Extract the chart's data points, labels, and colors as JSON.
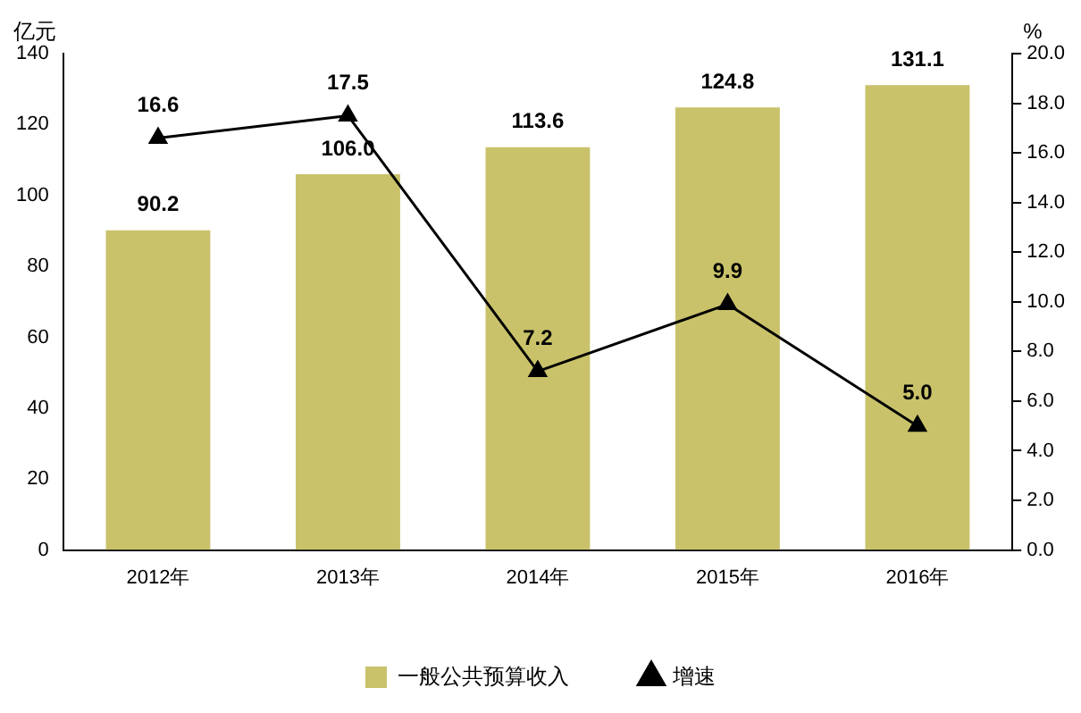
{
  "chart_data": {
    "type": "bar",
    "ylabel": "亿元",
    "y2label": "%",
    "categories": [
      "2012年",
      "2013年",
      "2014年",
      "2015年",
      "2016年"
    ],
    "series": [
      {
        "name": "一般公共预算收入",
        "color": "#c9c26a",
        "values": [
          90.2,
          106.0,
          113.6,
          124.8,
          131.1
        ],
        "value_labels": [
          "90.2",
          "106.0",
          "113.6",
          "124.8",
          "131.1"
        ]
      },
      {
        "name": "增速",
        "type": "line",
        "axis": "y2",
        "color": "#000000",
        "values": [
          16.6,
          17.5,
          7.2,
          9.9,
          5.0
        ],
        "value_labels": [
          "16.6",
          "17.5",
          "7.2",
          "9.9",
          "5.0"
        ]
      }
    ],
    "ylim": [
      0,
      140
    ],
    "yticks": [
      0,
      20,
      40,
      60,
      80,
      100,
      120,
      140
    ],
    "y2lim": [
      0,
      20
    ],
    "y2ticks": [
      {
        "value": 0,
        "label": "0.0"
      },
      {
        "value": 2,
        "label": "2.0"
      },
      {
        "value": 4,
        "label": "4.0"
      },
      {
        "value": 6,
        "label": "6.0"
      },
      {
        "value": 8,
        "label": "8.0"
      },
      {
        "value": 10,
        "label": "10.0"
      },
      {
        "value": 12,
        "label": "12.0"
      },
      {
        "value": 14,
        "label": "14.0"
      },
      {
        "value": 16,
        "label": "16.0"
      },
      {
        "value": 18,
        "label": "18.0"
      },
      {
        "value": 20,
        "label": "20.0"
      }
    ],
    "grid": false,
    "legend": "bottom",
    "marker": "triangle",
    "line_style": "solid"
  }
}
